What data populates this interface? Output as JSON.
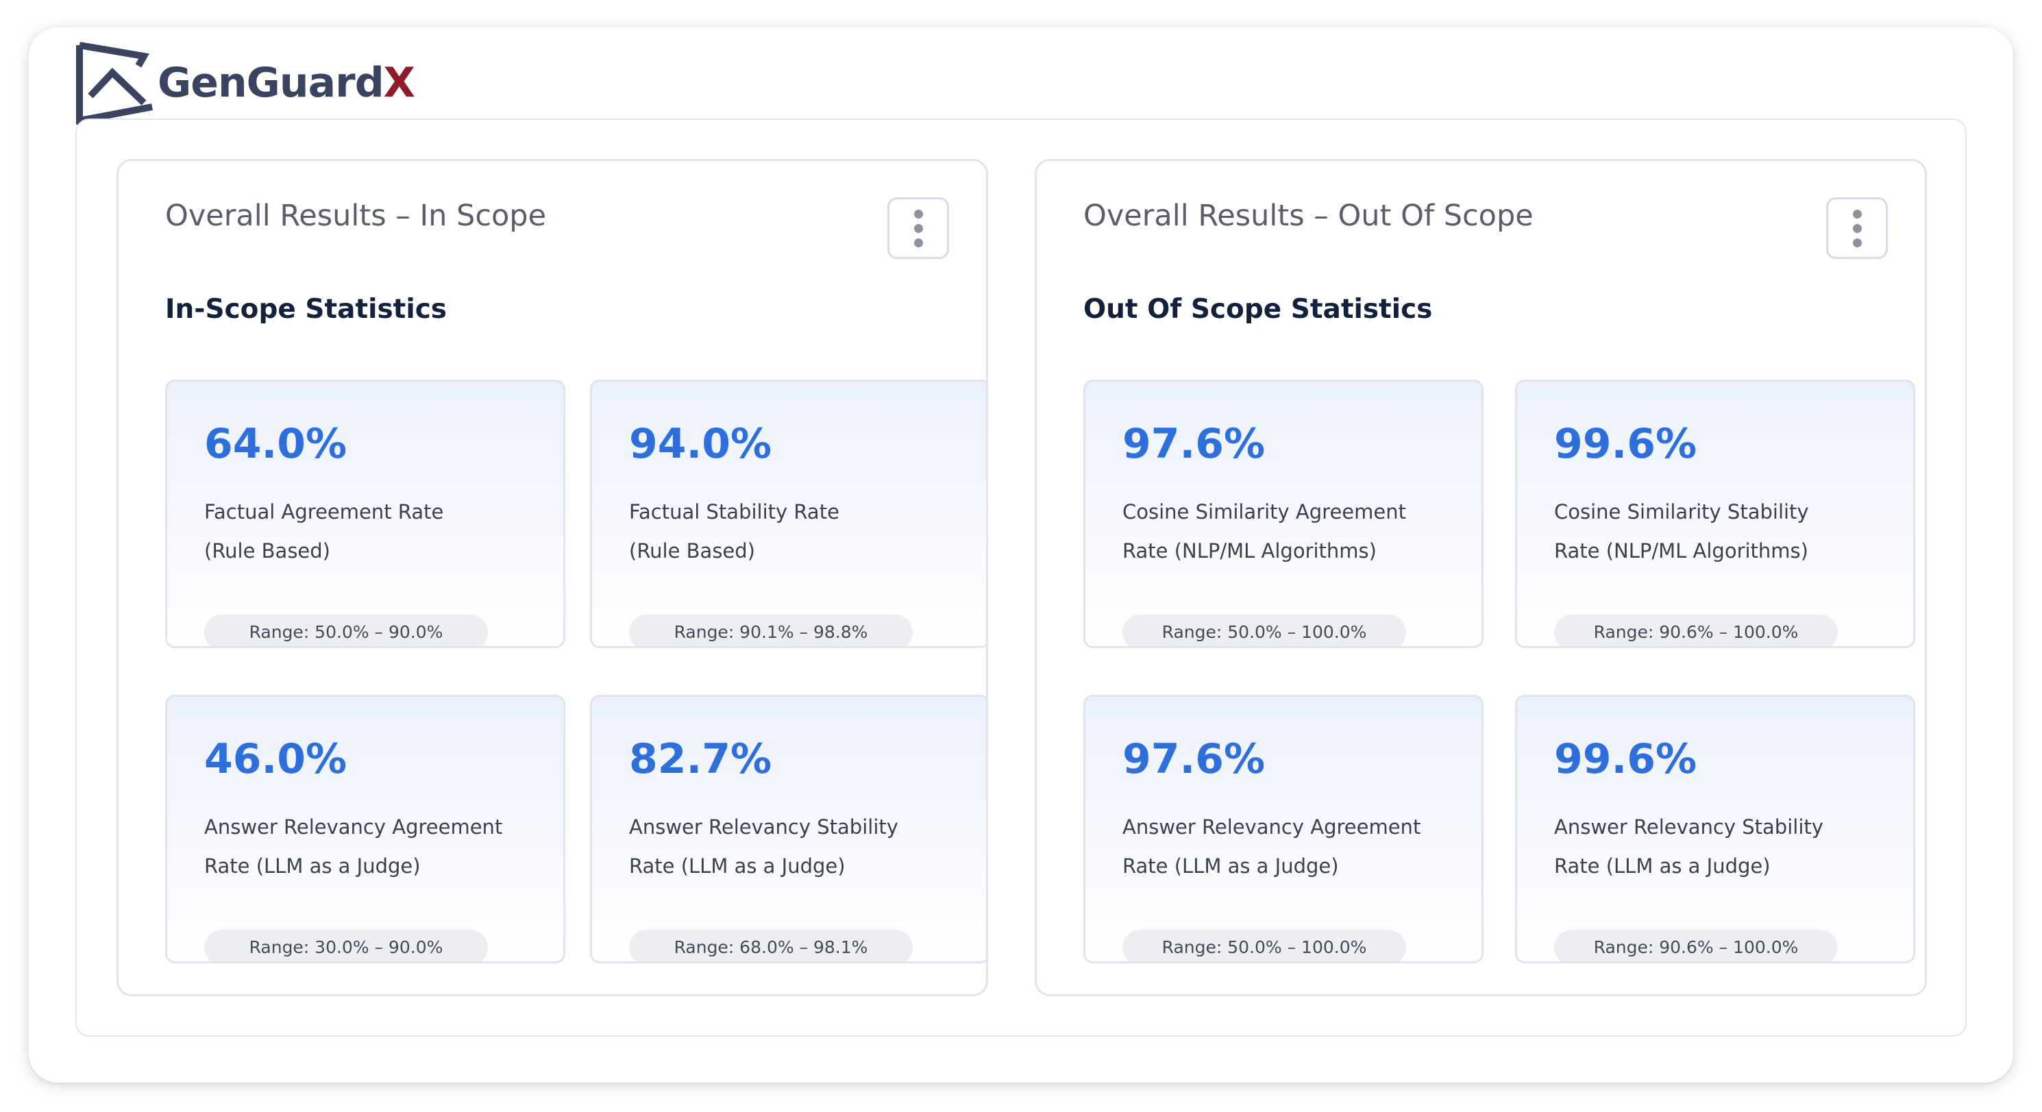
{
  "app": {
    "logo_text": "GenGuard",
    "logo_accent": "X",
    "colors": {
      "logo_dark": "#3a4460",
      "logo_accent": "#8e1b2a",
      "value_blue": "#2e6fdc",
      "heading_navy": "#14213d"
    }
  },
  "in_scope": {
    "title": "Overall Results – In Scope",
    "heading": "In-Scope Statistics",
    "menu_icon": "vertical-ellipsis-icon",
    "cards": [
      {
        "value": "64.0%",
        "label_line1": "Factual Agreement Rate",
        "label_line2": "(Rule Based)",
        "range": "Range: 50.0% – 90.0%"
      },
      {
        "value": "94.0%",
        "label_line1": "Factual Stability Rate",
        "label_line2": "(Rule Based)",
        "range": "Range: 90.1% – 98.8%"
      },
      {
        "value": "46.0%",
        "label_line1": "Answer Relevancy Agreement",
        "label_line2": "Rate (LLM as a Judge)",
        "range": "Range: 30.0% – 90.0%"
      },
      {
        "value": "82.7%",
        "label_line1": "Answer Relevancy Stability",
        "label_line2": "Rate (LLM as a Judge)",
        "range": "Range: 68.0% – 98.1%"
      }
    ]
  },
  "out_scope": {
    "title": "Overall Results – Out Of Scope",
    "heading": "Out Of Scope Statistics",
    "menu_icon": "vertical-ellipsis-icon",
    "cards": [
      {
        "value": "97.6%",
        "label_line1": "Cosine Similarity Agreement",
        "label_line2": "Rate (NLP/ML Algorithms)",
        "range": "Range: 50.0% – 100.0%"
      },
      {
        "value": "99.6%",
        "label_line1": "Cosine Similarity Stability",
        "label_line2": "Rate (NLP/ML Algorithms)",
        "range": "Range: 90.6% – 100.0%"
      },
      {
        "value": "97.6%",
        "label_line1": "Answer Relevancy Agreement",
        "label_line2": "Rate (LLM as a Judge)",
        "range": "Range: 50.0% – 100.0%"
      },
      {
        "value": "99.6%",
        "label_line1": "Answer Relevancy Stability",
        "label_line2": "Rate (LLM as a Judge)",
        "range": "Range: 90.6% – 100.0%"
      }
    ]
  }
}
